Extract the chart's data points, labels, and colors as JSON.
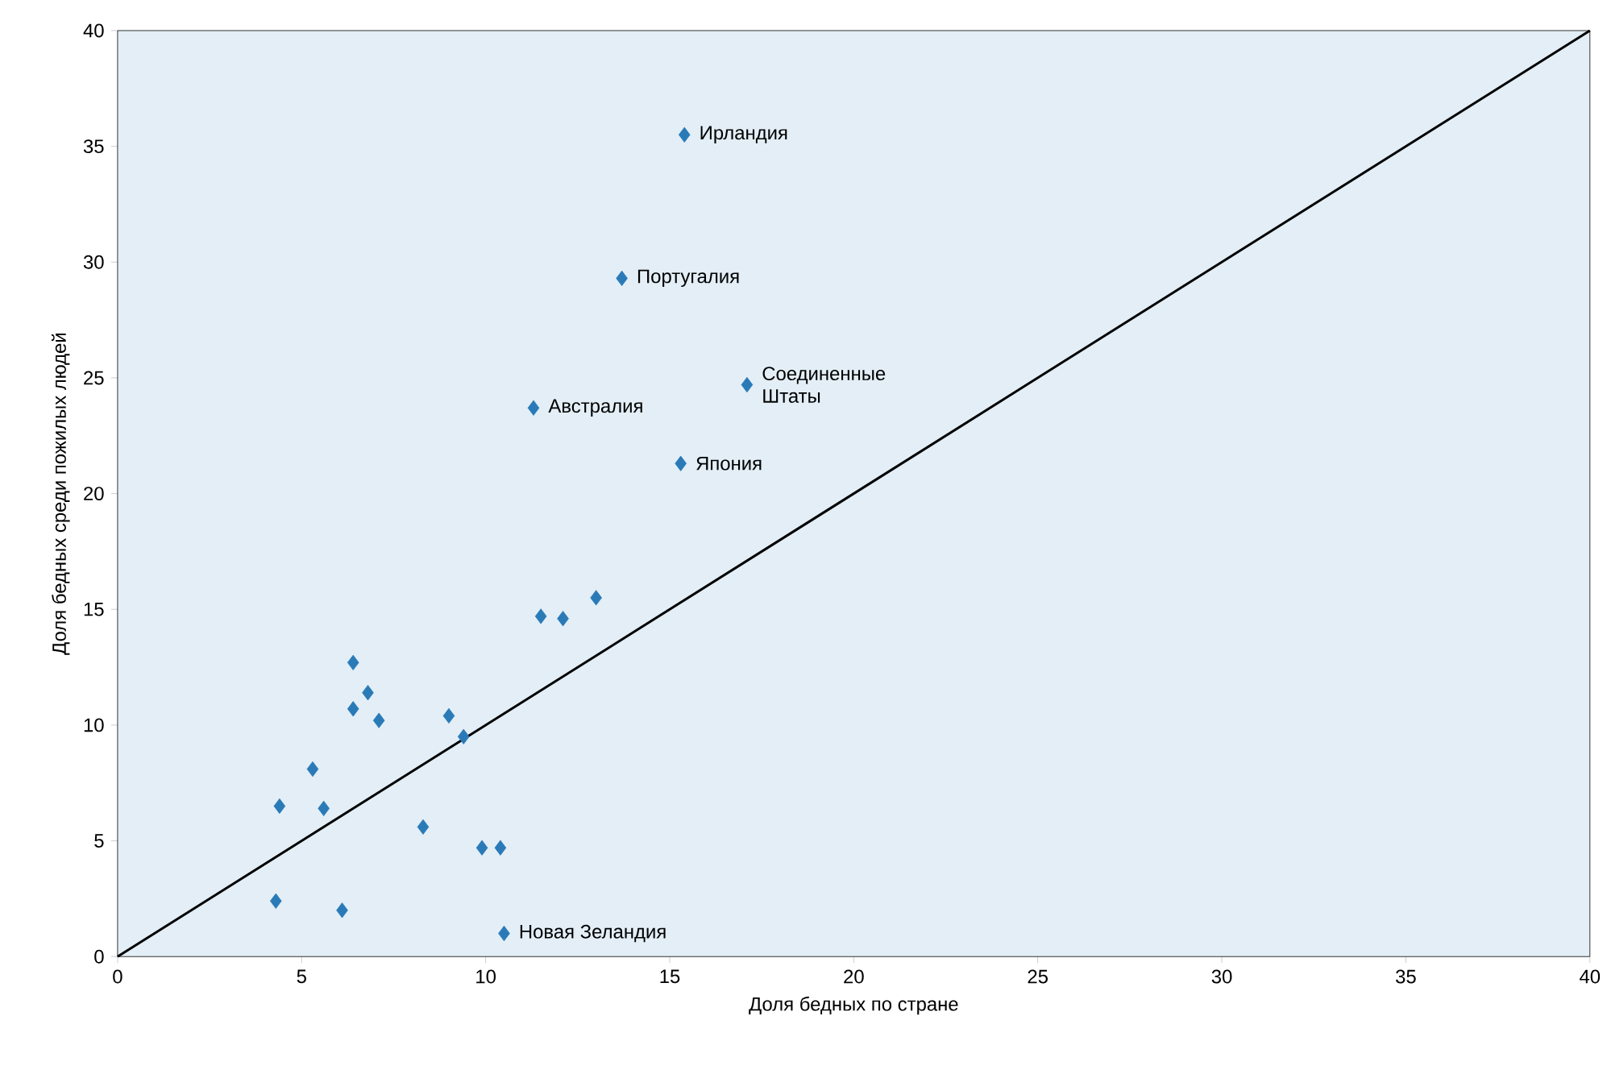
{
  "chart_data": {
    "type": "scatter",
    "xlabel": "Доля бедных по стране",
    "ylabel": "Доля бедных среди пожилых людей",
    "xlim": [
      0,
      40
    ],
    "ylim": [
      0,
      40
    ],
    "xticks": [
      0,
      5,
      10,
      15,
      20,
      25,
      30,
      35,
      40
    ],
    "yticks": [
      0,
      5,
      10,
      15,
      20,
      25,
      30,
      35,
      40
    ],
    "series": [
      {
        "marker": "diamond",
        "color": "#2a7ab8",
        "x": [
          15.4,
          13.7,
          17.1,
          11.3,
          15.3,
          13.0,
          11.5,
          12.1,
          6.4,
          6.8,
          6.4,
          7.1,
          9.0,
          9.4,
          5.3,
          4.4,
          5.6,
          8.3,
          9.9,
          10.4,
          4.3,
          6.1,
          10.5
        ],
        "values": [
          35.5,
          29.3,
          24.7,
          23.7,
          21.3,
          15.5,
          14.7,
          14.6,
          12.7,
          11.4,
          10.7,
          10.2,
          10.4,
          9.5,
          8.1,
          6.5,
          6.4,
          5.6,
          4.7,
          4.7,
          2.4,
          2.0,
          1.0
        ]
      },
      {
        "type": "line",
        "marker": "none",
        "color": "#000000",
        "x": [
          0,
          40
        ],
        "values": [
          0,
          40
        ]
      }
    ],
    "annotations": [
      {
        "text": "Ирландия",
        "x": 15.4,
        "y": 35.5
      },
      {
        "text": "Португалия",
        "x": 13.7,
        "y": 29.3
      },
      {
        "text": "Соединенные Штаты",
        "x": 17.1,
        "y": 24.7
      },
      {
        "text": "Австралия",
        "x": 11.3,
        "y": 23.7
      },
      {
        "text": "Япония",
        "x": 15.3,
        "y": 21.3
      },
      {
        "text": "Новая Зеландия",
        "x": 10.5,
        "y": 1.0
      }
    ]
  }
}
